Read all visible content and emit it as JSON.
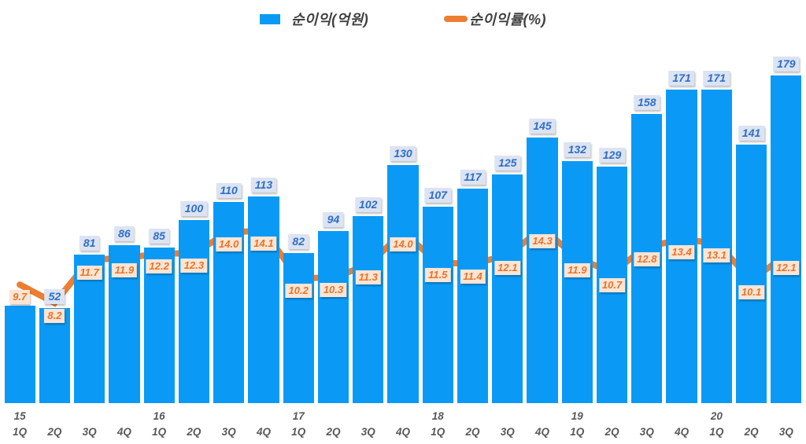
{
  "legend": {
    "bar_label": "순이익(억원)",
    "line_label": "순이익률(%)"
  },
  "colors": {
    "bar_fill": "#0a9af5",
    "line": "#ed7d31",
    "bar_value_bg": "#dce3f2",
    "bar_value_text": "#2e6fc6",
    "line_value_bg": "#fce5d4",
    "line_value_text": "#e8732a",
    "axis_text": "#595959",
    "legend_text": "#404040"
  },
  "chart_data": {
    "type": "bar",
    "subtype": "bar-line-combo",
    "categories": [
      "1Q",
      "2Q",
      "3Q",
      "4Q",
      "1Q",
      "2Q",
      "3Q",
      "4Q",
      "1Q",
      "2Q",
      "3Q",
      "4Q",
      "1Q",
      "2Q",
      "3Q",
      "4Q",
      "1Q",
      "2Q",
      "3Q",
      "4Q",
      "1Q",
      "2Q",
      "3Q"
    ],
    "year_labels": [
      {
        "index": 0,
        "label": "15"
      },
      {
        "index": 4,
        "label": "16"
      },
      {
        "index": 8,
        "label": "17"
      },
      {
        "index": 12,
        "label": "18"
      },
      {
        "index": 16,
        "label": "19"
      },
      {
        "index": 20,
        "label": "20"
      }
    ],
    "series": [
      {
        "name": "순이익(억원)",
        "type": "bar",
        "axis": "left",
        "values": [
          53,
          52,
          81,
          86,
          85,
          100,
          110,
          113,
          82,
          94,
          102,
          130,
          107,
          117,
          125,
          145,
          132,
          129,
          158,
          171,
          171,
          141,
          179
        ],
        "data_labels": [
          null,
          "52",
          "81",
          "86",
          "85",
          "100",
          "110",
          "113",
          "82",
          "94",
          "102",
          "130",
          "107",
          "117",
          "125",
          "145",
          "132",
          "129",
          "158",
          "171",
          "171",
          "141",
          "179"
        ]
      },
      {
        "name": "순이익률(%)",
        "type": "line",
        "axis": "right",
        "values": [
          9.7,
          8.2,
          11.7,
          11.9,
          12.2,
          12.3,
          14.0,
          14.1,
          10.2,
          10.3,
          11.3,
          14.0,
          11.5,
          11.4,
          12.1,
          14.3,
          11.9,
          10.7,
          12.8,
          13.4,
          13.1,
          10.1,
          12.1
        ],
        "data_labels": [
          "9.7",
          "8.2",
          "11.7",
          "11.9",
          "12.2",
          "12.3",
          "14.0",
          "14.1",
          "10.2",
          "10.3",
          "11.3",
          "14.0",
          "11.5",
          "11.4",
          "12.1",
          "14.3",
          "11.9",
          "10.7",
          "12.8",
          "13.4",
          "13.1",
          "10.1",
          "12.1"
        ]
      }
    ],
    "ylim_left": [
      0,
      220
    ],
    "ylim_right": [
      0,
      33
    ],
    "grid": false,
    "legend_position": "top-center",
    "axes_visible": false
  }
}
